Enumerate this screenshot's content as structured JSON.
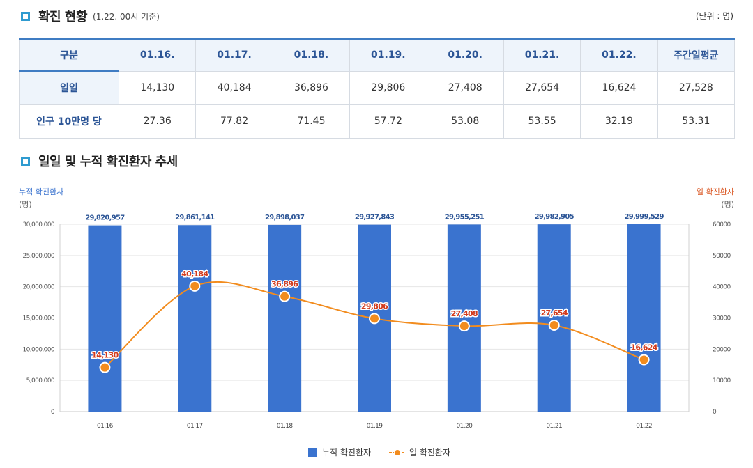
{
  "section1": {
    "title": "확진 현황",
    "subtitle": "(1.22. 00시 기준)",
    "unit": "(단위 : 명)"
  },
  "table": {
    "header": [
      "구분",
      "01.16.",
      "01.17.",
      "01.18.",
      "01.19.",
      "01.20.",
      "01.21.",
      "01.22.",
      "주간일평균"
    ],
    "rows": [
      {
        "label": "일일",
        "cells": [
          "14,130",
          "40,184",
          "36,896",
          "29,806",
          "27,408",
          "27,654",
          "16,624",
          "27,528"
        ]
      },
      {
        "label": "인구 10만명 당",
        "cells": [
          "27.36",
          "77.82",
          "71.45",
          "57.72",
          "53.08",
          "53.55",
          "32.19",
          "53.31"
        ]
      }
    ]
  },
  "section2": {
    "title": "일일 및 누적 확진환자 추세"
  },
  "chart_data": {
    "type": "bar+line",
    "categories": [
      "01.16",
      "01.17",
      "01.18",
      "01.19",
      "01.20",
      "01.21",
      "01.22"
    ],
    "series": [
      {
        "name": "누적 확진환자",
        "type": "bar",
        "axis": "left",
        "color": "#3a73cf",
        "values": [
          29820957,
          29861141,
          29898037,
          29927843,
          29955251,
          29982905,
          29999529
        ],
        "labels": [
          "29,820,957",
          "29,861,141",
          "29,898,037",
          "29,927,843",
          "29,955,251",
          "29,982,905",
          "29,999,529"
        ]
      },
      {
        "name": "일 확진환자",
        "type": "line",
        "axis": "right",
        "color": "#f28c1e",
        "values": [
          14130,
          40184,
          36896,
          29806,
          27408,
          27654,
          16624
        ],
        "labels": [
          "14,130",
          "40,184",
          "36,896",
          "29,806",
          "27,408",
          "27,654",
          "16,624"
        ]
      }
    ],
    "left_axis": {
      "title": "누적 확진환자",
      "unit": "(명)",
      "range": [
        0,
        30000000
      ],
      "ticks": [
        "0",
        "5,000,000",
        "10,000,000",
        "15,000,000",
        "20,000,000",
        "25,000,000",
        "30,000,000"
      ]
    },
    "right_axis": {
      "title": "일 확진환자",
      "unit": "(명)",
      "range": [
        0,
        60000
      ],
      "ticks": [
        "0",
        "10000",
        "20000",
        "30000",
        "40000",
        "50000",
        "60000"
      ]
    },
    "legend_position": "bottom-center",
    "grid": true
  }
}
